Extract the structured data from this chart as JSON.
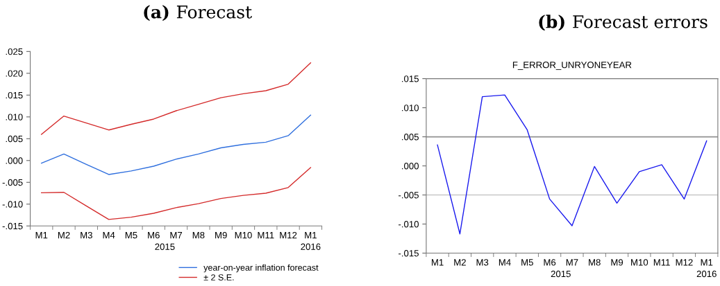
{
  "chart_data": [
    {
      "type": "line",
      "title": "(a) Forecast",
      "categories": [
        "M1",
        "M2",
        "M3",
        "M4",
        "M5",
        "M6",
        "M7",
        "M8",
        "M9",
        "M10",
        "M11",
        "M12",
        "M1"
      ],
      "series": [
        {
          "name": "year-on-year inflation forecast",
          "color": "#2f6fde",
          "values": [
            -0.0006,
            0.0015,
            -0.0009,
            -0.0032,
            -0.0024,
            -0.0013,
            0.0003,
            0.0015,
            0.0029,
            0.0037,
            0.0042,
            0.0057,
            0.0104
          ]
        },
        {
          "name": "± 2 S.E.",
          "color": "#d42a2a",
          "values": [
            0.006,
            0.0102,
            0.0086,
            0.007,
            0.0083,
            0.0095,
            0.0114,
            0.0129,
            0.0144,
            0.0153,
            0.016,
            0.0175,
            0.0224
          ]
        },
        {
          "color": "#d42a2a",
          "values": [
            -0.0074,
            -0.0073,
            -0.0104,
            -0.0135,
            -0.013,
            -0.0121,
            -0.0108,
            -0.0099,
            -0.0087,
            -0.008,
            -0.0075,
            -0.0062,
            -0.0016
          ]
        }
      ],
      "ylim": [
        -0.015,
        0.025
      ],
      "yticks": [
        {
          "value": -0.015,
          "label": "-.015"
        },
        {
          "value": -0.01,
          "label": "-.010"
        },
        {
          "value": -0.005,
          "label": "-.005"
        },
        {
          "value": 0,
          "label": ".000"
        },
        {
          "value": 0.005,
          "label": ".005"
        },
        {
          "value": 0.01,
          "label": ".010"
        },
        {
          "value": 0.015,
          "label": ".015"
        },
        {
          "value": 0.02,
          "label": ".020"
        },
        {
          "value": 0.025,
          "label": ".025"
        }
      ],
      "annotations": [
        "2015",
        "2016"
      ],
      "grid": false,
      "legend": "bottom right"
    },
    {
      "type": "line",
      "title": "(b) Forecast errors",
      "subtitle": "F_ERROR_UNRYONEYEAR",
      "categories": [
        "M1",
        "M2",
        "M3",
        "M4",
        "M5",
        "M6",
        "M7",
        "M8",
        "M9",
        "M10",
        "M11",
        "M12",
        "M1"
      ],
      "series": [
        {
          "color": "#1a1aee",
          "values": [
            0.0036,
            -0.0117,
            0.0119,
            0.0122,
            0.0062,
            -0.0057,
            -0.0103,
            -0.0001,
            -0.0064,
            -0.001,
            0.0002,
            -0.0057,
            0.0043
          ]
        }
      ],
      "ylim": [
        -0.015,
        0.015
      ],
      "yticks": [
        {
          "value": -0.015,
          "label": "-.015"
        },
        {
          "value": -0.01,
          "label": "-.010"
        },
        {
          "value": -0.005,
          "label": "-.005"
        },
        {
          "value": 0,
          "label": ".000"
        },
        {
          "value": 0.005,
          "label": ".005"
        },
        {
          "value": 0.01,
          "label": ".010"
        },
        {
          "value": 0.015,
          "label": ".015"
        }
      ],
      "ref_lines": [
        {
          "axis": "y",
          "value": 0.005,
          "color": "#909090"
        },
        {
          "axis": "y",
          "value": -0.005,
          "color": "#c8c8c8"
        }
      ],
      "annotations": [
        "2015",
        "2016"
      ],
      "grid": false,
      "legend": false
    }
  ]
}
